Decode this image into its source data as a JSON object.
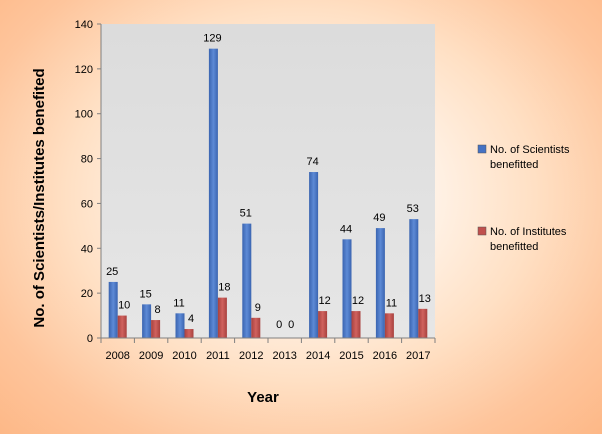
{
  "chart_data": {
    "type": "bar",
    "xlabel": "Year",
    "ylabel": "No. of Scientists/Institutes benefited",
    "ylim": [
      0,
      140
    ],
    "yticks": [
      0,
      20,
      40,
      60,
      80,
      100,
      120,
      140
    ],
    "grid": false,
    "legend_position": "right",
    "categories": [
      "2008",
      "2009",
      "2010",
      "2011",
      "2012",
      "2013",
      "2014",
      "2015",
      "2016",
      "2017"
    ],
    "series": [
      {
        "name": "No. of Scientists benefitted",
        "color": "#4572c4",
        "values": [
          25,
          15,
          11,
          129,
          51,
          0,
          74,
          44,
          49,
          53
        ]
      },
      {
        "name": "No. of Institutes benefitted",
        "color": "#c0504d",
        "values": [
          10,
          8,
          4,
          18,
          9,
          0,
          12,
          12,
          11,
          13
        ]
      }
    ],
    "legend_lines": [
      [
        "No. of Scientists",
        "benefitted"
      ],
      [
        "No. of Institutes",
        "benefitted"
      ]
    ]
  }
}
